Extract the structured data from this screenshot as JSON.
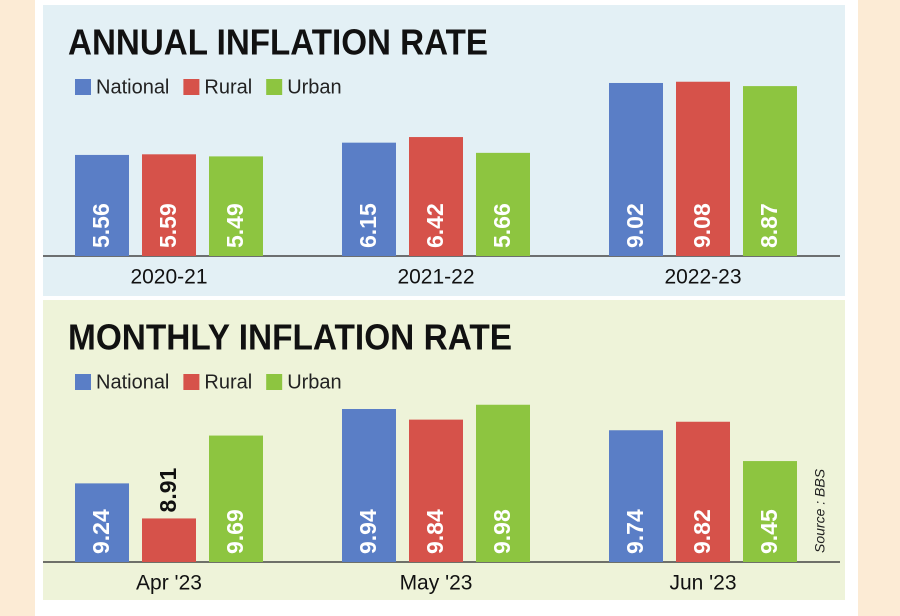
{
  "chart_data": [
    {
      "type": "bar",
      "title": "ANNUAL INFLATION RATE",
      "categories": [
        "2020-21",
        "2021-22",
        "2022-23"
      ],
      "series": [
        {
          "name": "National",
          "color": "#5a7ec6",
          "values": [
            5.56,
            6.15,
            9.02
          ]
        },
        {
          "name": "Rural",
          "color": "#d6524a",
          "values": [
            5.59,
            6.42,
            9.08
          ]
        },
        {
          "name": "Urban",
          "color": "#8dc540",
          "values": [
            5.49,
            5.66,
            8.87
          ]
        }
      ],
      "ylim": [
        0.7,
        9.5
      ]
    },
    {
      "type": "bar",
      "title": "MONTHLY INFLATION RATE",
      "categories": [
        "Apr '23",
        "May '23",
        "Jun '23"
      ],
      "series": [
        {
          "name": "National",
          "color": "#5a7ec6",
          "values": [
            9.24,
            9.94,
            9.74
          ]
        },
        {
          "name": "Rural",
          "color": "#d6524a",
          "values": [
            8.91,
            9.84,
            9.82
          ]
        },
        {
          "name": "Urban",
          "color": "#8dc540",
          "values": [
            9.69,
            9.98,
            9.45
          ]
        }
      ],
      "ylim": [
        8.5,
        10.1
      ],
      "source": "Source : BBS"
    }
  ]
}
